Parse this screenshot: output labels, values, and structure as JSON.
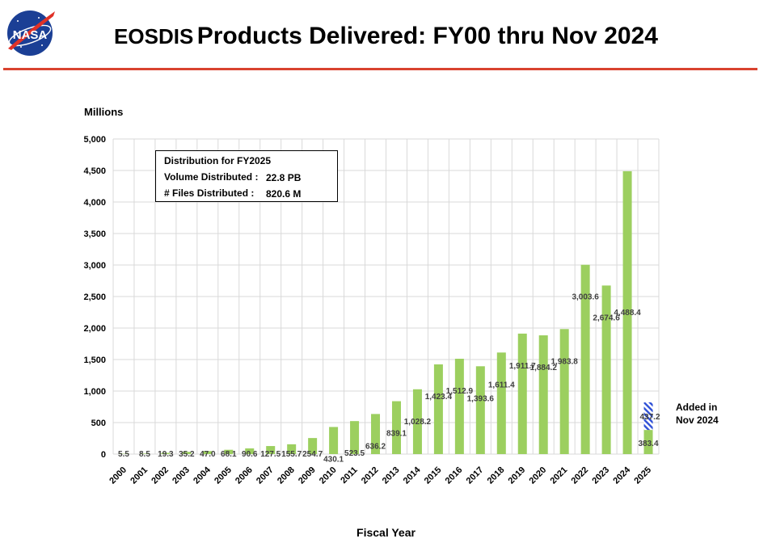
{
  "header": {
    "logo_text": "NASA",
    "title_part1": "EOSDIS",
    "title_part2": "Products Delivered: FY00 thru Nov 2024"
  },
  "infobox": {
    "heading": "Distribution for FY2025",
    "volume_label": "Volume Distributed :",
    "volume_value": "22.8 PB",
    "files_label": "# Files Distributed :",
    "files_value": "820.6 M"
  },
  "added_note": {
    "line1": "Added in",
    "line2": "Nov 2024"
  },
  "colors": {
    "bar": "#9ccf5f",
    "added_hatch": "#2e4fd6",
    "rule": "#d9432f",
    "grid": "#d9d9d9",
    "label_text": "#404040"
  },
  "chart_data": {
    "type": "bar",
    "title": "EOSDIS Products Delivered: FY00 thru Nov 2024",
    "ylabel": "Millions",
    "xlabel": "Fiscal Year",
    "ylim": [
      0,
      5000
    ],
    "yticks": [
      "0",
      "500",
      "1,000",
      "1,500",
      "2,000",
      "2,500",
      "3,000",
      "3,500",
      "4,000",
      "4,500",
      "5,000"
    ],
    "ytick_values": [
      0,
      500,
      1000,
      1500,
      2000,
      2500,
      3000,
      3500,
      4000,
      4500,
      5000
    ],
    "grid": true,
    "categories": [
      "2000",
      "2001",
      "2002",
      "2003",
      "2004",
      "2005",
      "2006",
      "2007",
      "2008",
      "2009",
      "2010",
      "2011",
      "2012",
      "2013",
      "2014",
      "2015",
      "2016",
      "2017",
      "2018",
      "2019",
      "2020",
      "2021",
      "2022",
      "2023",
      "2024",
      "2025"
    ],
    "values": [
      5.5,
      8.5,
      19.3,
      35.2,
      47.0,
      68.1,
      90.6,
      127.5,
      155.7,
      254.7,
      430.1,
      523.5,
      636.2,
      839.1,
      1028.2,
      1423.4,
      1512.9,
      1393.6,
      1611.4,
      1911.7,
      1884.2,
      1983.8,
      3003.6,
      2674.6,
      4488.4,
      383.4
    ],
    "value_labels": [
      "5.5",
      "8.5",
      "19.3",
      "35.2",
      "47.0",
      "68.1",
      "90.6",
      "127.5",
      "155.7",
      "254.7",
      "430.1",
      "523.5",
      "636.2",
      "839.1",
      "1,028.2",
      "1,423.4",
      "1,512.9",
      "1,393.6",
      "1,611.4",
      "1,911.7",
      "1,884.2",
      "1,983.8",
      "3,003.6",
      "2,674.6",
      "4,488.4",
      "383.4"
    ],
    "added": {
      "category": "2025",
      "base": 383.4,
      "value": 437.2,
      "label": "437.2",
      "legend": "Added in Nov 2024"
    }
  }
}
